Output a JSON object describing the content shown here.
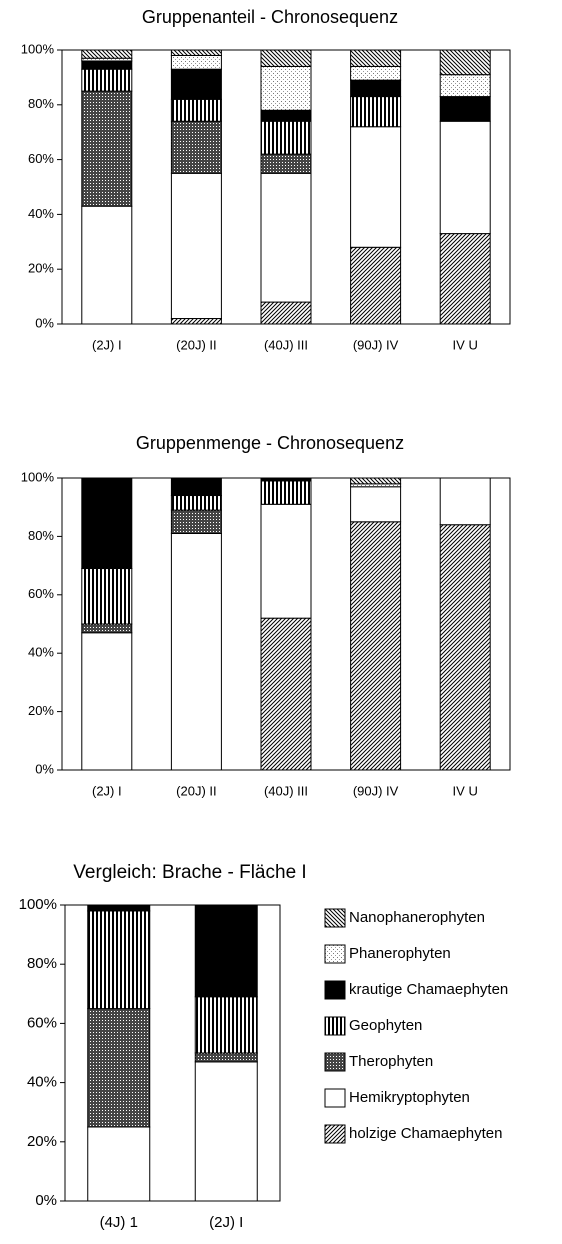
{
  "chart_data": [
    {
      "type": "stacked_bar",
      "title": "Gruppenanteil - Chronosequenz",
      "categories": [
        "(2J) I",
        "(20J) II",
        "(40J) III",
        "(90J) IV",
        "IV U"
      ],
      "ylim": [
        0,
        100
      ],
      "yticks": [
        {
          "value": 0,
          "label": "0%"
        },
        {
          "value": 20,
          "label": "20%"
        },
        {
          "value": 40,
          "label": "40%"
        },
        {
          "value": 60,
          "label": "60%"
        },
        {
          "value": 80,
          "label": "80%"
        },
        {
          "value": 100,
          "label": "100%"
        }
      ],
      "series": [
        {
          "pattern": "diag",
          "values": [
            0,
            2,
            8,
            28,
            33
          ]
        },
        {
          "pattern": "white",
          "values": [
            43,
            53,
            47,
            44,
            41
          ]
        },
        {
          "pattern": "cross",
          "values": [
            42,
            19,
            7,
            0,
            0
          ]
        },
        {
          "pattern": "vert",
          "values": [
            8,
            8,
            12,
            11,
            0
          ]
        },
        {
          "pattern": "black",
          "values": [
            3,
            11,
            4,
            6,
            9
          ]
        },
        {
          "pattern": "dots",
          "values": [
            1,
            5,
            16,
            5,
            8
          ]
        },
        {
          "pattern": "back",
          "values": [
            3,
            2,
            6,
            6,
            9
          ]
        }
      ]
    },
    {
      "type": "stacked_bar",
      "title": "Gruppenmenge - Chronosequenz",
      "categories": [
        "(2J) I",
        "(20J) II",
        "(40J) III",
        "(90J) IV",
        "IV U"
      ],
      "ylim": [
        0,
        100
      ],
      "yticks": [
        {
          "value": 0,
          "label": "0%"
        },
        {
          "value": 20,
          "label": "20%"
        },
        {
          "value": 40,
          "label": "40%"
        },
        {
          "value": 60,
          "label": "60%"
        },
        {
          "value": 80,
          "label": "80%"
        },
        {
          "value": 100,
          "label": "100%"
        }
      ],
      "series": [
        {
          "pattern": "diag",
          "values": [
            0,
            0,
            52,
            85,
            84
          ]
        },
        {
          "pattern": "white",
          "values": [
            47,
            81,
            39,
            12,
            16
          ]
        },
        {
          "pattern": "cross",
          "values": [
            3,
            8,
            0,
            0,
            0
          ]
        },
        {
          "pattern": "vert",
          "values": [
            19,
            5,
            8,
            0,
            0
          ]
        },
        {
          "pattern": "black",
          "values": [
            31,
            6,
            1,
            0,
            0
          ]
        },
        {
          "pattern": "dots",
          "values": [
            0,
            0,
            0,
            1,
            0
          ]
        },
        {
          "pattern": "back",
          "values": [
            0,
            0,
            0,
            2,
            0
          ]
        }
      ]
    },
    {
      "type": "stacked_bar",
      "title": "Vergleich: Brache - Fläche I",
      "categories": [
        "(4J) 1",
        "(2J) I"
      ],
      "ylim": [
        0,
        100
      ],
      "yticks": [
        {
          "value": 0,
          "label": "0%"
        },
        {
          "value": 20,
          "label": "20%"
        },
        {
          "value": 40,
          "label": "40%"
        },
        {
          "value": 60,
          "label": "60%"
        },
        {
          "value": 80,
          "label": "80%"
        },
        {
          "value": 100,
          "label": "100%"
        }
      ],
      "series": [
        {
          "name": "holzige Chamaephyten",
          "pattern": "diag",
          "values": [
            0,
            0
          ]
        },
        {
          "name": "Hemikryptophyten",
          "pattern": "white",
          "values": [
            25,
            47
          ]
        },
        {
          "name": "Therophyten",
          "pattern": "cross",
          "values": [
            40,
            3
          ]
        },
        {
          "name": "Geophyten",
          "pattern": "vert",
          "values": [
            33,
            19
          ]
        },
        {
          "name": "krautige Chamaephyten",
          "pattern": "black",
          "values": [
            2,
            31
          ]
        },
        {
          "name": "Phanerophyten",
          "pattern": "dots",
          "values": [
            0,
            0
          ]
        },
        {
          "name": "Nanophanerophyten",
          "pattern": "back",
          "values": [
            0,
            0
          ]
        }
      ]
    }
  ]
}
